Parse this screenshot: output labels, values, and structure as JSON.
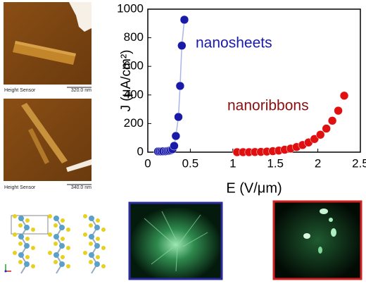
{
  "chart_data": {
    "type": "scatter",
    "xlabel": "E (V/μm)",
    "ylabel": "J (μA/cm²)",
    "xlim": [
      0,
      2.5
    ],
    "xticks": [
      0,
      0.5,
      1,
      1.5,
      2,
      2.5
    ],
    "ylim": [
      0,
      1000
    ],
    "yticks": [
      0,
      200,
      400,
      600,
      800,
      1000
    ],
    "series": [
      {
        "name": "nanosheets",
        "color": "#1a1aa8",
        "line_color": "#aab4e8",
        "x": [
          0.12,
          0.14,
          0.16,
          0.18,
          0.21,
          0.23,
          0.25,
          0.27,
          0.29,
          0.31,
          0.33,
          0.36,
          0.38,
          0.4,
          0.43
        ],
        "values": [
          5,
          5,
          5,
          6,
          6,
          8,
          10,
          14,
          20,
          44,
          113,
          246,
          463,
          745,
          926
        ]
      },
      {
        "name": "nanoribbons",
        "color": "#e01010",
        "x": [
          1.05,
          1.12,
          1.19,
          1.26,
          1.33,
          1.4,
          1.47,
          1.54,
          1.61,
          1.68,
          1.75,
          1.82,
          1.89,
          1.96,
          2.03,
          2.1,
          2.17,
          2.24,
          2.31
        ],
        "values": [
          0,
          0,
          0,
          1,
          2,
          4,
          7,
          11,
          17,
          25,
          36,
          50,
          68,
          92,
          122,
          165,
          220,
          290,
          395
        ]
      }
    ]
  },
  "afm_images": [
    {
      "label": "Height Sensor",
      "scale": "320.0 nm"
    },
    {
      "label": "Height Sensor",
      "scale": "340.0 nm"
    }
  ]
}
